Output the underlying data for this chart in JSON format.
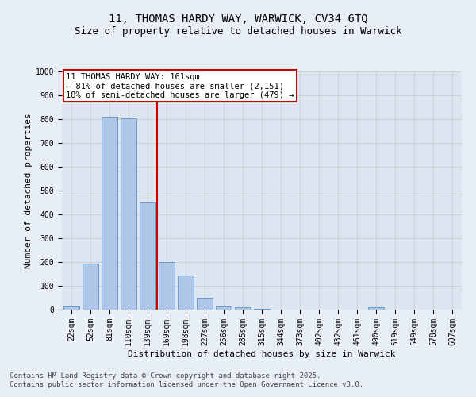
{
  "title_line1": "11, THOMAS HARDY WAY, WARWICK, CV34 6TQ",
  "title_line2": "Size of property relative to detached houses in Warwick",
  "xlabel": "Distribution of detached houses by size in Warwick",
  "ylabel": "Number of detached properties",
  "categories": [
    "22sqm",
    "52sqm",
    "81sqm",
    "110sqm",
    "139sqm",
    "169sqm",
    "198sqm",
    "227sqm",
    "256sqm",
    "285sqm",
    "315sqm",
    "344sqm",
    "373sqm",
    "402sqm",
    "432sqm",
    "461sqm",
    "490sqm",
    "519sqm",
    "549sqm",
    "578sqm",
    "607sqm"
  ],
  "values": [
    15,
    195,
    810,
    805,
    450,
    200,
    145,
    50,
    15,
    10,
    5,
    0,
    0,
    0,
    0,
    0,
    10,
    0,
    0,
    0,
    0
  ],
  "bar_color": "#aec6e8",
  "bar_edge_color": "#5a8fc2",
  "property_line_x": 4.5,
  "property_line_color": "#cc0000",
  "annotation_text": "11 THOMAS HARDY WAY: 161sqm\n← 81% of detached houses are smaller (2,151)\n18% of semi-detached houses are larger (479) →",
  "annotation_box_color": "#ffffff",
  "annotation_box_edge": "#cc0000",
  "ylim": [
    0,
    1000
  ],
  "yticks": [
    0,
    100,
    200,
    300,
    400,
    500,
    600,
    700,
    800,
    900,
    1000
  ],
  "grid_color": "#cccccc",
  "bg_color": "#e8eef5",
  "plot_bg_color": "#dce6f0",
  "footer_line1": "Contains HM Land Registry data © Crown copyright and database right 2025.",
  "footer_line2": "Contains public sector information licensed under the Open Government Licence v3.0.",
  "title_fontsize": 10,
  "subtitle_fontsize": 9,
  "axis_label_fontsize": 8,
  "tick_fontsize": 7,
  "annotation_fontsize": 7.5,
  "footer_fontsize": 6.5
}
